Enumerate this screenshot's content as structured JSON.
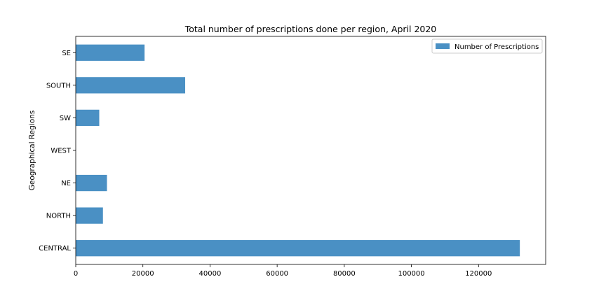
{
  "chart_data": {
    "type": "bar",
    "orientation": "horizontal",
    "title": "Total number of prescriptions done per region, April 2020",
    "xlabel": "",
    "ylabel": "Geographical Regions",
    "categories": [
      "CENTRAL",
      "NORTH",
      "NE",
      "WEST",
      "SW",
      "SOUTH",
      "SE"
    ],
    "series": [
      {
        "name": "Number of Prescriptions",
        "values": [
          132300,
          8100,
          9300,
          0,
          7000,
          32600,
          20500
        ],
        "color": "#4a90c4"
      }
    ],
    "xlim": [
      0,
      140000
    ],
    "xticks": [
      0,
      20000,
      40000,
      60000,
      80000,
      100000,
      120000
    ],
    "xtick_labels": [
      "0",
      "20000",
      "40000",
      "60000",
      "80000",
      "100000",
      "120000"
    ],
    "grid": false,
    "legend_position": "top-right"
  }
}
